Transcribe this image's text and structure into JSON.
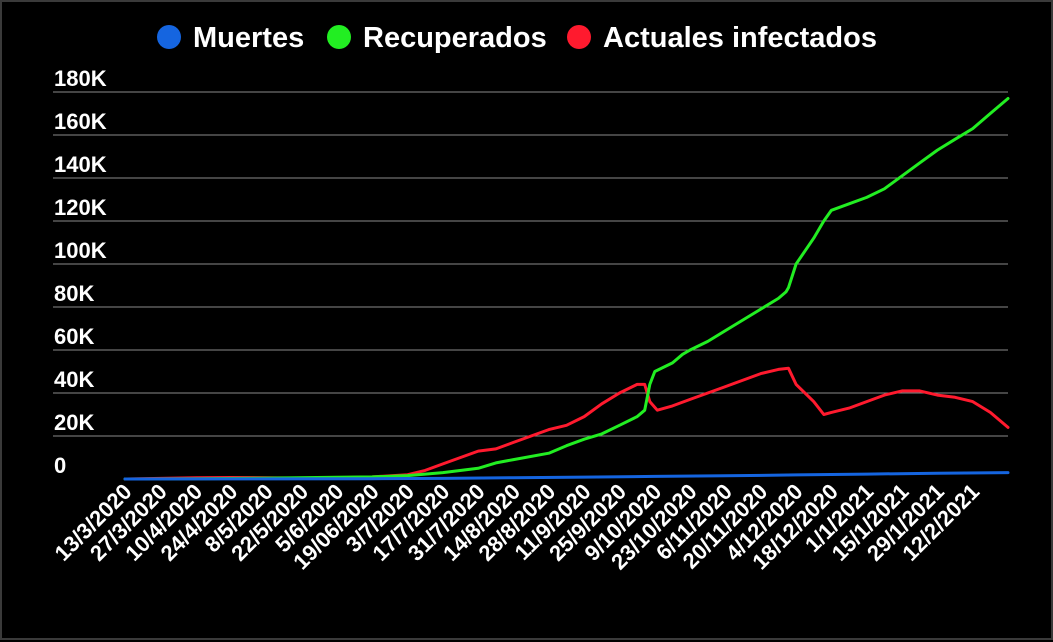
{
  "chart_data": {
    "type": "line",
    "title": "",
    "xlabel": "",
    "ylabel": "",
    "ylim": [
      0,
      180000
    ],
    "yticks": [
      0,
      20000,
      40000,
      60000,
      80000,
      100000,
      120000,
      140000,
      160000,
      180000
    ],
    "ytick_labels": [
      "0",
      "20K",
      "40K",
      "60K",
      "80K",
      "100K",
      "120K",
      "140K",
      "160K",
      "180K"
    ],
    "x_start": "2020-03-13",
    "x_end": "2021-02-26",
    "xtick_labels": [
      "13/3/2020",
      "27/3/2020",
      "10/4/2020",
      "24/4/2020",
      "8/5/2020",
      "22/5/2020",
      "5/6/2020",
      "19/06/2020",
      "3/7/2020",
      "17/7/2020",
      "31/7/2020",
      "14/8/2020",
      "28/8/2020",
      "11/9/2020",
      "25/9/2020",
      "9/10/2020",
      "23/10/2020",
      "6/11/2020",
      "20/11/2020",
      "4/12/2020",
      "18/12/2020",
      "1/1/2021",
      "15/1/2021",
      "29/1/2021",
      "12/2/2021"
    ],
    "grid": true,
    "legend_position": "top",
    "series": [
      {
        "name": "Muertes",
        "color": "#1565e0",
        "points": [
          [
            "2020-03-13",
            0
          ],
          [
            "2020-05-08",
            50
          ],
          [
            "2020-06-19",
            150
          ],
          [
            "2020-07-17",
            300
          ],
          [
            "2020-08-14",
            600
          ],
          [
            "2020-09-11",
            900
          ],
          [
            "2020-10-09",
            1200
          ],
          [
            "2020-11-06",
            1500
          ],
          [
            "2020-12-04",
            1900
          ],
          [
            "2021-01-01",
            2300
          ],
          [
            "2021-01-29",
            2700
          ],
          [
            "2021-02-26",
            3000
          ]
        ]
      },
      {
        "name": "Recuperados",
        "color": "#22ee22",
        "points": [
          [
            "2020-03-13",
            0
          ],
          [
            "2020-04-10",
            100
          ],
          [
            "2020-05-08",
            400
          ],
          [
            "2020-06-05",
            800
          ],
          [
            "2020-06-19",
            1000
          ],
          [
            "2020-07-03",
            1600
          ],
          [
            "2020-07-17",
            3000
          ],
          [
            "2020-07-31",
            5000
          ],
          [
            "2020-08-07",
            7500
          ],
          [
            "2020-08-14",
            9000
          ],
          [
            "2020-08-28",
            12000
          ],
          [
            "2020-09-04",
            15500
          ],
          [
            "2020-09-11",
            18500
          ],
          [
            "2020-09-18",
            21000
          ],
          [
            "2020-09-25",
            25000
          ],
          [
            "2020-10-02",
            29000
          ],
          [
            "2020-10-05",
            32000
          ],
          [
            "2020-10-07",
            44000
          ],
          [
            "2020-10-09",
            50000
          ],
          [
            "2020-10-16",
            54000
          ],
          [
            "2020-10-20",
            58000
          ],
          [
            "2020-10-23",
            60000
          ],
          [
            "2020-10-30",
            64000
          ],
          [
            "2020-11-06",
            69000
          ],
          [
            "2020-11-13",
            74000
          ],
          [
            "2020-11-20",
            79000
          ],
          [
            "2020-11-27",
            84000
          ],
          [
            "2020-11-30",
            87000
          ],
          [
            "2020-12-01",
            89000
          ],
          [
            "2020-12-04",
            100000
          ],
          [
            "2020-12-11",
            112000
          ],
          [
            "2020-12-15",
            120000
          ],
          [
            "2020-12-18",
            125000
          ],
          [
            "2020-12-25",
            128000
          ],
          [
            "2021-01-01",
            131000
          ],
          [
            "2021-01-08",
            135000
          ],
          [
            "2021-01-15",
            141000
          ],
          [
            "2021-01-22",
            147000
          ],
          [
            "2021-01-29",
            153000
          ],
          [
            "2021-02-05",
            158000
          ],
          [
            "2021-02-12",
            163000
          ],
          [
            "2021-02-19",
            170000
          ],
          [
            "2021-02-26",
            177000
          ]
        ]
      },
      {
        "name": "Actuales infectados",
        "color": "#ff1a2e",
        "points": [
          [
            "2020-03-13",
            0
          ],
          [
            "2020-03-27",
            300
          ],
          [
            "2020-04-10",
            600
          ],
          [
            "2020-04-24",
            700
          ],
          [
            "2020-05-08",
            600
          ],
          [
            "2020-05-22",
            400
          ],
          [
            "2020-06-05",
            600
          ],
          [
            "2020-06-19",
            1000
          ],
          [
            "2020-07-03",
            2000
          ],
          [
            "2020-07-10",
            4000
          ],
          [
            "2020-07-17",
            7000
          ],
          [
            "2020-07-31",
            13000
          ],
          [
            "2020-08-07",
            14000
          ],
          [
            "2020-08-14",
            17000
          ],
          [
            "2020-08-28",
            23000
          ],
          [
            "2020-09-04",
            25000
          ],
          [
            "2020-09-11",
            29000
          ],
          [
            "2020-09-18",
            35000
          ],
          [
            "2020-09-25",
            40000
          ],
          [
            "2020-10-02",
            44000
          ],
          [
            "2020-10-05",
            44000
          ],
          [
            "2020-10-07",
            36000
          ],
          [
            "2020-10-10",
            32000
          ],
          [
            "2020-10-16",
            34000
          ],
          [
            "2020-10-23",
            37000
          ],
          [
            "2020-10-30",
            40000
          ],
          [
            "2020-11-06",
            43000
          ],
          [
            "2020-11-13",
            46000
          ],
          [
            "2020-11-20",
            49000
          ],
          [
            "2020-11-27",
            51000
          ],
          [
            "2020-12-01",
            51500
          ],
          [
            "2020-12-04",
            44000
          ],
          [
            "2020-12-11",
            36000
          ],
          [
            "2020-12-15",
            30000
          ],
          [
            "2020-12-18",
            31000
          ],
          [
            "2020-12-25",
            33000
          ],
          [
            "2021-01-01",
            36000
          ],
          [
            "2021-01-08",
            39000
          ],
          [
            "2021-01-15",
            41000
          ],
          [
            "2021-01-22",
            41000
          ],
          [
            "2021-01-29",
            39000
          ],
          [
            "2021-02-05",
            38000
          ],
          [
            "2021-02-12",
            36000
          ],
          [
            "2021-02-19",
            31000
          ],
          [
            "2021-02-26",
            24000
          ]
        ]
      }
    ]
  }
}
